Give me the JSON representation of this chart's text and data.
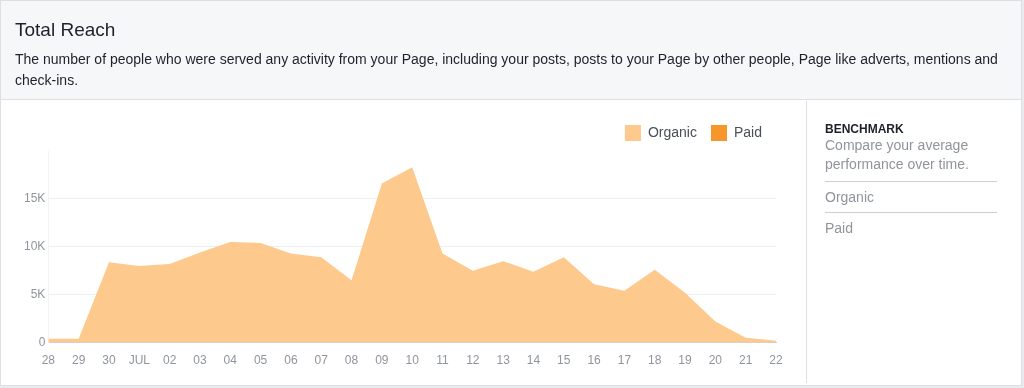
{
  "chart_data": {
    "type": "area",
    "title": "Total Reach",
    "subtitle": "The number of people who were served any activity from your Page, including your posts, posts to your Page by other people, Page like adverts, mentions and check-ins.",
    "categories": [
      "28",
      "29",
      "30",
      "JUL",
      "02",
      "03",
      "04",
      "05",
      "06",
      "07",
      "08",
      "09",
      "10",
      "11",
      "12",
      "13",
      "14",
      "15",
      "16",
      "17",
      "18",
      "19",
      "20",
      "21",
      "22"
    ],
    "series": [
      {
        "name": "Organic",
        "color": "#fdc98c",
        "values": [
          400,
          400,
          8400,
          8000,
          8200,
          9400,
          10500,
          10400,
          9300,
          8900,
          6500,
          16600,
          18300,
          9300,
          7500,
          8500,
          7400,
          8900,
          6100,
          5400,
          7600,
          5200,
          2200,
          500,
          200
        ]
      },
      {
        "name": "Paid",
        "color": "#f7962a",
        "values": [
          null,
          null,
          null,
          null,
          null,
          null,
          null,
          null,
          null,
          null,
          null,
          null,
          null,
          null,
          null,
          null,
          null,
          null,
          null,
          null,
          null,
          null,
          null,
          null,
          null
        ]
      }
    ],
    "ylim": [
      0,
      20000
    ],
    "yticks": [
      {
        "value": 0,
        "label": "0"
      },
      {
        "value": 5000,
        "label": "5K"
      },
      {
        "value": 10000,
        "label": "10K"
      },
      {
        "value": 15000,
        "label": "15K"
      }
    ],
    "grid": "y",
    "legend": "top right",
    "annotations": [
      "BENCHMARK",
      "Compare your average performance over time.",
      "Organic",
      "Paid"
    ]
  }
}
